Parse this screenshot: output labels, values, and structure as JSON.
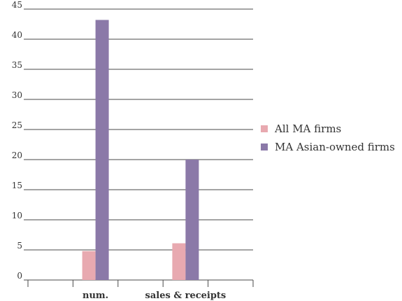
{
  "chart_data": {
    "type": "bar",
    "categories": [
      "",
      "num.",
      "",
      "sales & receipts",
      ""
    ],
    "series": [
      {
        "name": "All MA firms",
        "values": [
          null,
          4.8,
          null,
          6.1,
          null
        ],
        "color": "#e8a9b0"
      },
      {
        "name": "MA Asian-owned firms",
        "values": [
          null,
          43.2,
          null,
          20.0,
          null
        ],
        "color": "#8b79a8"
      }
    ],
    "yticks": [
      "0",
      "5",
      "10",
      "15",
      "20",
      "25",
      "30",
      "35",
      "40",
      "45"
    ],
    "ylim": [
      0,
      45
    ],
    "grid": true,
    "legend_position": "right"
  }
}
